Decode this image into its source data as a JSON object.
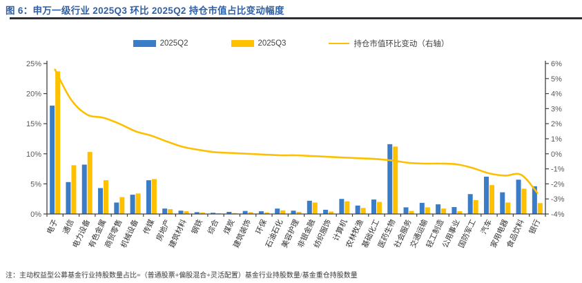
{
  "figure": {
    "title": "图 6：申万一级行业 2025Q3 环比 2025Q2 持仓市值占比变动幅度",
    "footnote": "注：主动权益型公募基金行业持股数量占比=（普通股票+偏股混合+灵活配置）基金行业持股数量/基金重仓持股数量"
  },
  "colors": {
    "q2_blue": "#3B7CC7",
    "q3_yellow": "#FFC000",
    "line_yellow": "#FEBF00",
    "title_blue": "#2E5FA7",
    "axis": "#404040",
    "tick_label": "#595959",
    "x_label": "#333333"
  },
  "chart_data": {
    "type": "bar",
    "title": "申万一级行业 2025Q3 环比 2025Q2 持仓市值占比变动幅度",
    "categories": [
      "电子",
      "通信",
      "电力设备",
      "有色金属",
      "商贸零售",
      "机械设备",
      "传媒",
      "房地产",
      "建筑材料",
      "钢铁",
      "综合",
      "煤炭",
      "建筑装饰",
      "环保",
      "石油石化",
      "美容护理",
      "非银金融",
      "纺织服饰",
      "计算机",
      "农林牧渔",
      "基础化工",
      "医药生物",
      "社会服务",
      "交通运输",
      "轻工制造",
      "公用事业",
      "国防军工",
      "汽车",
      "家用电器",
      "食品饮料",
      "银行"
    ],
    "series": [
      {
        "name": "2025Q2",
        "type": "bar",
        "axis": "left",
        "values": [
          18.0,
          5.3,
          8.2,
          4.3,
          1.9,
          3.2,
          5.6,
          0.9,
          0.55,
          0.3,
          0.2,
          0.35,
          0.5,
          0.45,
          0.9,
          0.55,
          2.2,
          0.7,
          2.5,
          1.4,
          2.4,
          11.6,
          1.1,
          1.85,
          1.6,
          1.15,
          3.3,
          6.2,
          3.6,
          5.7,
          4.6
        ]
      },
      {
        "name": "2025Q3",
        "type": "bar",
        "axis": "left",
        "values": [
          23.7,
          8.1,
          10.3,
          5.6,
          2.8,
          3.4,
          5.8,
          0.8,
          0.45,
          0.25,
          0.1,
          0.15,
          0.3,
          0.25,
          0.6,
          0.35,
          1.9,
          0.4,
          2.1,
          1.0,
          2.0,
          11.2,
          0.5,
          1.1,
          0.9,
          0.45,
          2.3,
          4.8,
          1.9,
          4.2,
          1.8
        ]
      },
      {
        "name": "持仓市值环比变动（右轴）",
        "type": "line",
        "axis": "right",
        "values": [
          5.6,
          3.6,
          2.6,
          2.4,
          2.0,
          1.5,
          1.2,
          0.8,
          0.45,
          0.25,
          0.1,
          0.05,
          0.0,
          -0.05,
          -0.1,
          -0.1,
          -0.15,
          -0.2,
          -0.25,
          -0.3,
          -0.35,
          -0.45,
          -0.6,
          -0.65,
          -0.65,
          -0.7,
          -0.95,
          -1.3,
          -1.45,
          -1.4,
          -2.6
        ]
      }
    ],
    "left_axis": {
      "min": 0,
      "max": 25,
      "step": 5,
      "tick_labels": [
        "0%",
        "5%",
        "10%",
        "15%",
        "20%",
        "25%"
      ]
    },
    "right_axis": {
      "min": -4,
      "max": 6,
      "step": 1,
      "tick_labels": [
        "-4%",
        "-3%",
        "-2%",
        "-1%",
        "0%",
        "1%",
        "2%",
        "3%",
        "4%",
        "5%",
        "6%"
      ]
    },
    "legend_position": "top",
    "grid": false
  }
}
